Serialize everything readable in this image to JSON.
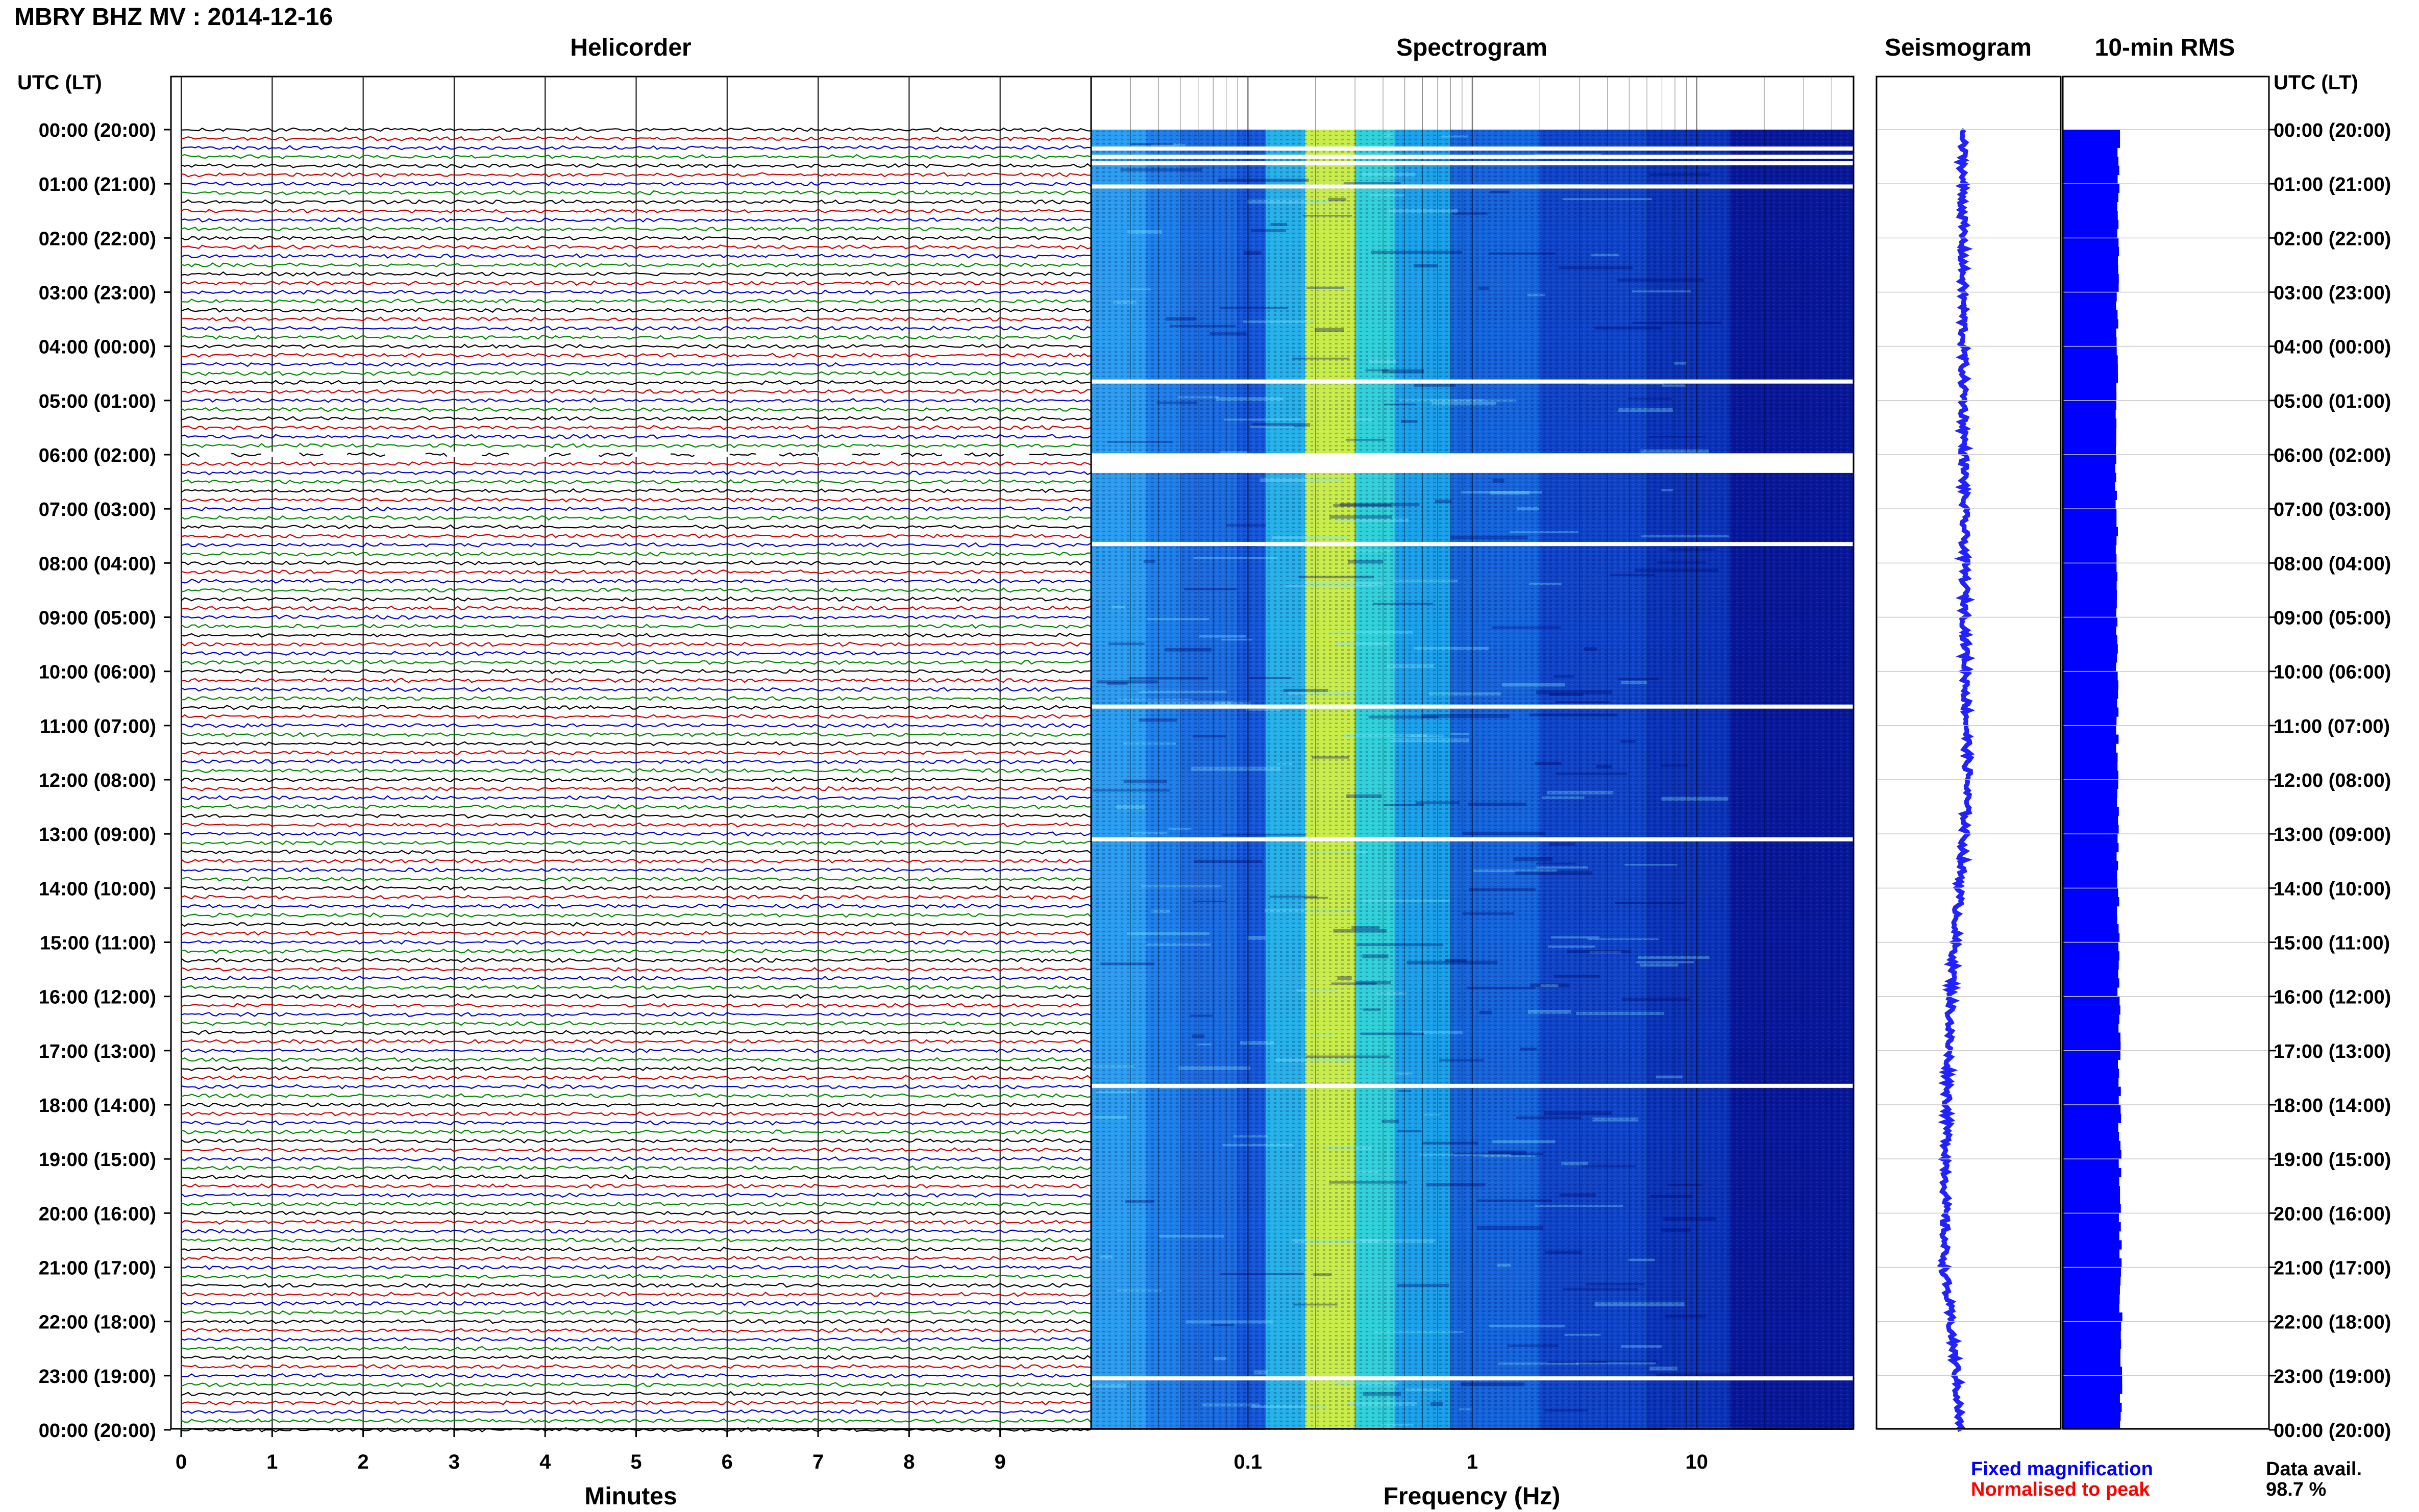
{
  "header": {
    "title": "MBRY BHZ MV : 2014-12-16"
  },
  "panels": {
    "helicorder": "Helicorder",
    "spectrogram": "Spectrogram",
    "seismogram": "Seismogram",
    "rms": "10-min RMS"
  },
  "axes": {
    "left_header": "UTC (LT)",
    "right_header": "UTC (LT)",
    "helicorder_xlabel": "Minutes",
    "spectrogram_xlabel": "Frequency (Hz)"
  },
  "legend": {
    "fixed": "Fixed magnification",
    "normalised": "Normalised to peak",
    "data_avail_label": "Data avail.",
    "data_avail_value": "98.7 %"
  },
  "colors": {
    "fixed": "#0000ff",
    "normalised": "#ff0000",
    "trace_cycle": [
      "#000000",
      "#cc0000",
      "#0000cc",
      "#008800"
    ],
    "rms_fill": "#0000ff",
    "seismogram": "#2222ff"
  },
  "chart_data": [
    {
      "type": "line",
      "name": "helicorder",
      "xlim": [
        0,
        10
      ],
      "x_ticks": [
        0,
        1,
        2,
        3,
        4,
        5,
        6,
        7,
        8,
        9
      ],
      "time_labels": [
        "00:00 (20:00)",
        "01:00 (21:00)",
        "02:00 (22:00)",
        "03:00 (23:00)",
        "04:00 (00:00)",
        "05:00 (01:00)",
        "06:00 (02:00)",
        "07:00 (03:00)",
        "08:00 (04:00)",
        "09:00 (05:00)",
        "10:00 (06:00)",
        "11:00 (07:00)",
        "12:00 (08:00)",
        "13:00 (09:00)",
        "14:00 (10:00)",
        "15:00 (11:00)",
        "16:00 (12:00)",
        "17:00 (13:00)",
        "18:00 (14:00)",
        "19:00 (15:00)",
        "20:00 (16:00)",
        "21:00 (17:00)",
        "22:00 (18:00)",
        "23:00 (19:00)",
        "00:00 (20:00)"
      ],
      "traces_per_hour": 6
    },
    {
      "type": "heatmap",
      "name": "spectrogram",
      "x_scale": "log",
      "xlim": [
        0.02,
        50
      ],
      "x_tick_labels": [
        "0.1",
        "1",
        "10"
      ],
      "gaps_hours": [
        0.35,
        0.5,
        0.62,
        1.05,
        4.65,
        6.05,
        6.2,
        6.3,
        7.65,
        10.65,
        13.1,
        17.65,
        23.05
      ],
      "peak_band_hz": [
        0.18,
        0.3
      ]
    },
    {
      "type": "line",
      "name": "seismogram",
      "offset_profile": [
        [
          0,
          0.5
        ],
        [
          2,
          0.5
        ],
        [
          4,
          0.6
        ],
        [
          6,
          0.7
        ],
        [
          8,
          0.8
        ],
        [
          10,
          1.0
        ],
        [
          12,
          1.3
        ],
        [
          13,
          0.8
        ],
        [
          14,
          0.0
        ],
        [
          15,
          -0.8
        ],
        [
          16,
          -1.4
        ],
        [
          17,
          -1.8
        ],
        [
          18,
          -2.0
        ],
        [
          19,
          -2.2
        ],
        [
          20,
          -2.4
        ],
        [
          21,
          -2.5
        ],
        [
          22,
          -1.5
        ],
        [
          23,
          -0.5
        ],
        [
          24,
          0.0
        ]
      ]
    },
    {
      "type": "bar",
      "name": "10-min RMS",
      "orientation": "horizontal",
      "relative_level_profile": [
        [
          0,
          0.88
        ],
        [
          6,
          0.82
        ],
        [
          12,
          0.85
        ],
        [
          18,
          0.9
        ],
        [
          24,
          0.95
        ]
      ]
    }
  ]
}
